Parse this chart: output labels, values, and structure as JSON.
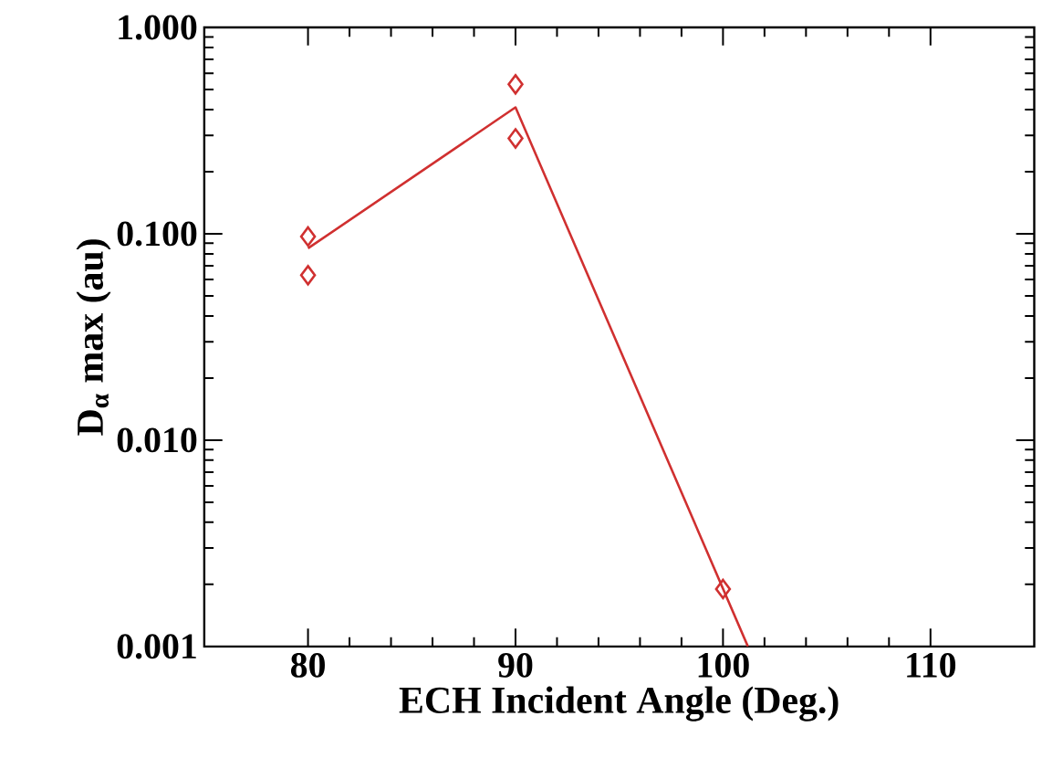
{
  "chart_data": {
    "type": "scatter",
    "xlabel": "ECH Incident Angle (Deg.)",
    "ylabel": "D$_{α}$ max (au)",
    "xlim": [
      75,
      115
    ],
    "xticks": [
      80,
      90,
      100,
      110
    ],
    "ylim": [
      0.001,
      1
    ],
    "yticks": [
      {
        "value": 0.001,
        "label": "0.001"
      },
      {
        "value": 0.01,
        "label": "0.010"
      },
      {
        "value": 0.1,
        "label": "0.100"
      },
      {
        "value": 1,
        "label": "1.000"
      }
    ],
    "log": "y",
    "grid": false,
    "marker": "diamond",
    "series": [
      {
        "color": "#d03030",
        "x": [
          80,
          80,
          90,
          90,
          100
        ],
        "values": [
          0.097,
          0.063,
          0.53,
          0.29,
          0.0019
        ]
      },
      {
        "type": "line",
        "color": "#d03030",
        "marker": "none",
        "line_style": "solid",
        "x": [
          80,
          90,
          101.2
        ],
        "values": [
          0.085,
          0.41,
          0.001
        ]
      }
    ]
  }
}
